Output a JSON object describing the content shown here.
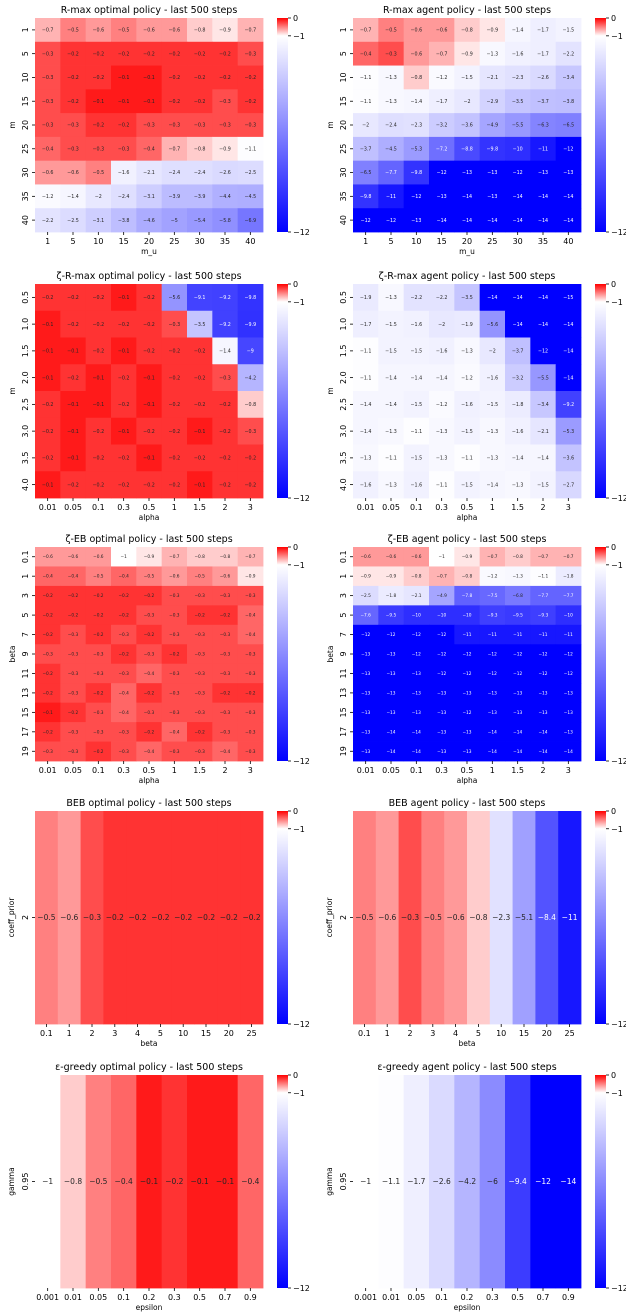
{
  "colormap": {
    "high": "#ff0000",
    "mid": "#ffffff",
    "low": "#0000ff",
    "vmin": -12,
    "vcenter": -1,
    "vmax": 0
  },
  "colorbar_ticks": [
    "0",
    "−1",
    "−12"
  ],
  "chart_data": [
    {
      "type": "heatmap",
      "title": "R-max optimal policy - last 500 steps",
      "xlabel": "m_u",
      "ylabel": "m",
      "x": [
        "1",
        "5",
        "10",
        "15",
        "20",
        "25",
        "30",
        "35",
        "40"
      ],
      "y": [
        "1",
        "5",
        "10",
        "15",
        "20",
        "25",
        "30",
        "35",
        "40"
      ],
      "values": [
        [
          -0.7,
          -0.5,
          -0.6,
          -0.5,
          -0.6,
          -0.6,
          -0.8,
          -0.9,
          -0.7
        ],
        [
          -0.3,
          -0.2,
          -0.2,
          -0.2,
          -0.2,
          -0.2,
          -0.2,
          -0.2,
          -0.3
        ],
        [
          -0.3,
          -0.2,
          -0.2,
          -0.1,
          -0.1,
          -0.2,
          -0.2,
          -0.2,
          -0.2
        ],
        [
          -0.3,
          -0.2,
          -0.1,
          -0.1,
          -0.1,
          -0.2,
          -0.2,
          -0.3,
          -0.2
        ],
        [
          -0.3,
          -0.3,
          -0.2,
          -0.2,
          -0.3,
          -0.3,
          -0.3,
          -0.3,
          -0.3
        ],
        [
          -0.4,
          -0.3,
          -0.3,
          -0.3,
          -0.4,
          -0.7,
          -0.8,
          -0.9,
          -1.1
        ],
        [
          -0.6,
          -0.6,
          -0.5,
          -1.6,
          -2.1,
          -2.4,
          -2.4,
          -2.6,
          -2.5
        ],
        [
          -1.2,
          -1.4,
          -2,
          -2.4,
          -3.1,
          -3.9,
          -3.9,
          -4.4,
          -4.5
        ],
        [
          -2.2,
          -2.5,
          -3.1,
          -3.8,
          -4.6,
          -5,
          -5.4,
          -5.8,
          -6.9
        ]
      ]
    },
    {
      "type": "heatmap",
      "title": "R-max agent policy - last 500 steps",
      "xlabel": "m_u",
      "ylabel": "m",
      "x": [
        "1",
        "5",
        "10",
        "15",
        "20",
        "25",
        "30",
        "35",
        "40"
      ],
      "y": [
        "1",
        "5",
        "10",
        "15",
        "20",
        "25",
        "30",
        "35",
        "40"
      ],
      "values": [
        [
          -0.7,
          -0.5,
          -0.6,
          -0.6,
          -0.8,
          -0.9,
          -1.4,
          -1.7,
          -1.5
        ],
        [
          -0.4,
          -0.3,
          -0.6,
          -0.7,
          -0.9,
          -1.3,
          -1.6,
          -1.7,
          -2.2
        ],
        [
          -1.1,
          -1.3,
          -0.8,
          -1.2,
          -1.5,
          -2.1,
          -2.3,
          -2.6,
          -3.4
        ],
        [
          -1.1,
          -1.3,
          -1.4,
          -1.7,
          -2,
          -2.9,
          -3.5,
          -3.7,
          -3.8
        ],
        [
          -2,
          -2.4,
          -2.3,
          -3.2,
          -3.6,
          -4.9,
          -5.5,
          -6.3,
          -6.5
        ],
        [
          -3.7,
          -4.5,
          -5.3,
          -7.2,
          -8.8,
          -9.8,
          -10,
          -11,
          -12
        ],
        [
          -6.5,
          -7.7,
          -9.8,
          -12,
          -13,
          -13,
          -12,
          -13,
          -13
        ],
        [
          -9.8,
          -11,
          -12,
          -13,
          -14,
          -13,
          -14,
          -14,
          -14
        ],
        [
          -12,
          -12,
          -13,
          -14,
          -14,
          -14,
          -14,
          -14,
          -14
        ]
      ]
    },
    {
      "type": "heatmap",
      "title": "ζ-R-max optimal policy - last 500 steps",
      "xlabel": "alpha",
      "ylabel": "m",
      "x": [
        "0.01",
        "0.05",
        "0.1",
        "0.3",
        "0.5",
        "1",
        "1.5",
        "2",
        "3"
      ],
      "y": [
        "0.5",
        "1.0",
        "1.5",
        "2.0",
        "2.5",
        "3.0",
        "3.5",
        "4.0"
      ],
      "values": [
        [
          -0.2,
          -0.2,
          -0.2,
          -0.1,
          -0.2,
          -5.6,
          -9.1,
          -9.2,
          -9.8
        ],
        [
          -0.1,
          -0.2,
          -0.2,
          -0.2,
          -0.2,
          -0.3,
          -3.5,
          -9.2,
          -9.9
        ],
        [
          -0.1,
          -0.1,
          -0.2,
          -0.1,
          -0.2,
          -0.2,
          -0.2,
          -1.4,
          -9
        ],
        [
          -0.1,
          -0.2,
          -0.1,
          -0.2,
          -0.1,
          -0.2,
          -0.2,
          -0.3,
          -4.2
        ],
        [
          -0.2,
          -0.1,
          -0.1,
          -0.2,
          -0.1,
          -0.2,
          -0.2,
          -0.2,
          -0.8
        ],
        [
          -0.2,
          -0.1,
          -0.2,
          -0.1,
          -0.2,
          -0.2,
          -0.1,
          -0.2,
          -0.3
        ],
        [
          -0.2,
          -0.1,
          -0.2,
          -0.2,
          -0.1,
          -0.2,
          -0.2,
          -0.2,
          -0.2
        ],
        [
          -0.1,
          -0.2,
          -0.2,
          -0.2,
          -0.2,
          -0.2,
          -0.1,
          -0.2,
          -0.2
        ]
      ]
    },
    {
      "type": "heatmap",
      "title": "ζ-R-max agent policy - last 500 steps",
      "xlabel": "alpha",
      "ylabel": "m",
      "x": [
        "0.01",
        "0.05",
        "0.1",
        "0.3",
        "0.5",
        "1",
        "1.5",
        "2",
        "3"
      ],
      "y": [
        "0.5",
        "1.0",
        "1.5",
        "2.0",
        "2.5",
        "3.0",
        "3.5",
        "4.0"
      ],
      "values": [
        [
          -1.9,
          -1.3,
          -2.2,
          -2.2,
          -3.5,
          -14,
          -14,
          -14,
          -15
        ],
        [
          -1.7,
          -1.5,
          -1.6,
          -2,
          -1.9,
          -5.6,
          -14,
          -14,
          -14
        ],
        [
          -1.1,
          -1.5,
          -1.5,
          -1.6,
          -1.3,
          -2,
          -3.7,
          -12,
          -14
        ],
        [
          -1.1,
          -1.4,
          -1.4,
          -1.4,
          -1.2,
          -1.6,
          -3.2,
          -5.5,
          -14
        ],
        [
          -1.4,
          -1.4,
          -1.5,
          -1.2,
          -1.6,
          -1.5,
          -1.8,
          -3.4,
          -9.2
        ],
        [
          -1.4,
          -1.3,
          -1.1,
          -1.3,
          -1.5,
          -1.3,
          -1.6,
          -2.1,
          -5.3
        ],
        [
          -1.3,
          -1.1,
          -1.5,
          -1.3,
          -1.1,
          -1.3,
          -1.4,
          -1.4,
          -3.6
        ],
        [
          -1.6,
          -1.3,
          -1.6,
          -1.1,
          -1.5,
          -1.4,
          -1.3,
          -1.5,
          -2.7
        ]
      ]
    },
    {
      "type": "heatmap",
      "title": "ζ-EB optimal policy - last 500 steps",
      "xlabel": "alpha",
      "ylabel": "beta",
      "x": [
        "0.01",
        "0.05",
        "0.1",
        "0.3",
        "0.5",
        "1",
        "1.5",
        "2",
        "3"
      ],
      "y": [
        "0.1",
        "1",
        "3",
        "5",
        "7",
        "9",
        "11",
        "13",
        "15",
        "17",
        "19"
      ],
      "values": [
        [
          -0.6,
          -0.6,
          -0.6,
          -1,
          -0.9,
          -0.7,
          -0.8,
          -0.8,
          -0.7
        ],
        [
          -0.4,
          -0.4,
          -0.5,
          -0.4,
          -0.5,
          -0.6,
          -0.5,
          -0.6,
          -0.9
        ],
        [
          -0.2,
          -0.2,
          -0.2,
          -0.2,
          -0.2,
          -0.3,
          -0.3,
          -0.3,
          -0.3
        ],
        [
          -0.2,
          -0.2,
          -0.2,
          -0.2,
          -0.3,
          -0.3,
          -0.2,
          -0.2,
          -0.4
        ],
        [
          -0.2,
          -0.3,
          -0.2,
          -0.3,
          -0.2,
          -0.3,
          -0.3,
          -0.3,
          -0.4
        ],
        [
          -0.3,
          -0.3,
          -0.3,
          -0.2,
          -0.3,
          -0.2,
          -0.3,
          -0.3,
          -0.3
        ],
        [
          -0.2,
          -0.3,
          -0.3,
          -0.3,
          -0.4,
          -0.3,
          -0.3,
          -0.3,
          -0.3
        ],
        [
          -0.2,
          -0.3,
          -0.2,
          -0.4,
          -0.2,
          -0.3,
          -0.3,
          -0.2,
          -0.2
        ],
        [
          -0.1,
          -0.2,
          -0.3,
          -0.4,
          -0.3,
          -0.3,
          -0.3,
          -0.3,
          -0.3
        ],
        [
          -0.2,
          -0.3,
          -0.3,
          -0.3,
          -0.2,
          -0.4,
          -0.2,
          -0.3,
          -0.3
        ],
        [
          -0.3,
          -0.3,
          -0.2,
          -0.3,
          -0.4,
          -0.3,
          -0.3,
          -0.4,
          -0.3
        ]
      ]
    },
    {
      "type": "heatmap",
      "title": "ζ-EB agent policy - last 500 steps",
      "xlabel": "alpha",
      "ylabel": "beta",
      "x": [
        "0.01",
        "0.05",
        "0.1",
        "0.3",
        "0.5",
        "1",
        "1.5",
        "2",
        "3"
      ],
      "y": [
        "0.1",
        "1",
        "3",
        "5",
        "7",
        "9",
        "11",
        "13",
        "15",
        "17",
        "19"
      ],
      "values": [
        [
          -0.6,
          -0.6,
          -0.6,
          -1,
          -0.9,
          -0.7,
          -0.8,
          -0.7,
          -0.7
        ],
        [
          -0.9,
          -0.9,
          -0.8,
          -0.7,
          -0.8,
          -1.2,
          -1.3,
          -1.1,
          -1.8
        ],
        [
          -2.5,
          -1.8,
          -2.1,
          -4.9,
          -7.8,
          -7.5,
          -6.8,
          -7.7,
          -7.7
        ],
        [
          -7.6,
          -9.5,
          -10,
          -10,
          -10,
          -9.3,
          -9.5,
          -9.3,
          -10
        ],
        [
          -12,
          -12,
          -12,
          -12,
          -11,
          -11,
          -11,
          -11,
          -11
        ],
        [
          -13,
          -13,
          -12,
          -12,
          -12,
          -12,
          -12,
          -12,
          -12
        ],
        [
          -13,
          -13,
          -13,
          -12,
          -12,
          -12,
          -12,
          -12,
          -12
        ],
        [
          -13,
          -13,
          -13,
          -13,
          -13,
          -13,
          -13,
          -13,
          -13
        ],
        [
          -13,
          -13,
          -13,
          -13,
          -12,
          -13,
          -13,
          -13,
          -13
        ],
        [
          -13,
          -14,
          -14,
          -13,
          -13,
          -14,
          -14,
          -14,
          -13
        ],
        [
          -13,
          -14,
          -14,
          -13,
          -13,
          -14,
          -14,
          -14,
          -14
        ]
      ]
    },
    {
      "type": "heatmap",
      "title": "BEB optimal policy - last 500 steps",
      "xlabel": "beta",
      "ylabel": "coeff_prior",
      "x": [
        "0.1",
        "1",
        "2",
        "3",
        "4",
        "5",
        "10",
        "15",
        "20",
        "25"
      ],
      "y": [
        "2"
      ],
      "values": [
        [
          -0.5,
          -0.6,
          -0.3,
          -0.2,
          -0.2,
          -0.2,
          -0.2,
          -0.2,
          -0.2,
          -0.2
        ]
      ]
    },
    {
      "type": "heatmap",
      "title": "BEB agent policy - last 500 steps",
      "xlabel": "beta",
      "ylabel": "coeff_prior",
      "x": [
        "0.1",
        "1",
        "2",
        "3",
        "4",
        "5",
        "10",
        "15",
        "20",
        "25"
      ],
      "y": [
        "2"
      ],
      "values": [
        [
          -0.5,
          -0.6,
          -0.3,
          -0.5,
          -0.6,
          -0.8,
          -2.3,
          -5.1,
          -8.4,
          -11
        ]
      ]
    },
    {
      "type": "heatmap",
      "title": "ε-greedy optimal policy - last 500 steps",
      "xlabel": "epsilon",
      "ylabel": "gamma",
      "x": [
        "0.001",
        "0.01",
        "0.05",
        "0.1",
        "0.2",
        "0.3",
        "0.5",
        "0.7",
        "0.9"
      ],
      "y": [
        "0.95"
      ],
      "values": [
        [
          -1,
          -0.8,
          -0.5,
          -0.4,
          -0.1,
          -0.2,
          -0.1,
          -0.1,
          -0.4
        ]
      ]
    },
    {
      "type": "heatmap",
      "title": "ε-greedy agent policy - last 500 steps",
      "xlabel": "epsilon",
      "ylabel": "gamma",
      "x": [
        "0.001",
        "0.01",
        "0.05",
        "0.1",
        "0.2",
        "0.3",
        "0.5",
        "0.7",
        "0.9"
      ],
      "y": [
        "0.95"
      ],
      "values": [
        [
          -1,
          -1.1,
          -1.7,
          -2.6,
          -4.2,
          -6,
          -9.4,
          -12,
          -14
        ]
      ]
    }
  ]
}
